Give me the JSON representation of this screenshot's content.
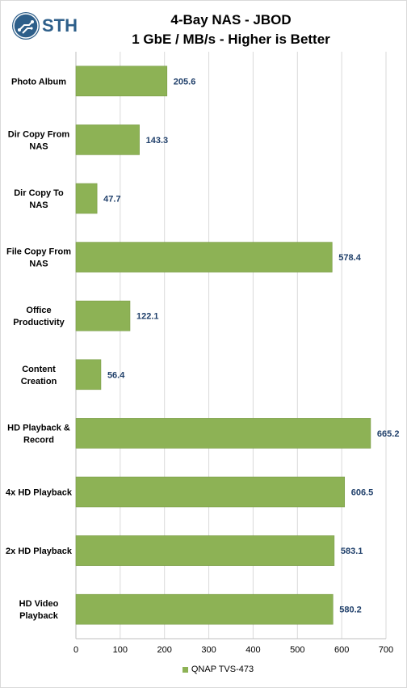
{
  "header": {
    "logo_text": "STH",
    "title_line1": "4-Bay NAS - JBOD",
    "title_line2": "1 GbE / MB/s - Higher is Better"
  },
  "colors": {
    "bar": "#8db255",
    "bar_border": "#7a9c47",
    "value_label": "#1f3f6a",
    "grid": "#d9d9d9",
    "logo": "#2e5f8a"
  },
  "chart_data": {
    "type": "bar",
    "orientation": "horizontal",
    "title": "4-Bay NAS - JBOD 1 GbE / MB/s - Higher is Better",
    "categories": [
      "Photo Album",
      "Dir Copy From NAS",
      "Dir Copy To NAS",
      "File Copy From NAS",
      "Office Productivity",
      "Content Creation",
      "HD Playback & Record",
      "4x HD Playback",
      "2x HD Playback",
      "HD Video Playback"
    ],
    "category_lines": [
      [
        "Photo Album"
      ],
      [
        "Dir Copy From",
        "NAS"
      ],
      [
        "Dir Copy To",
        "NAS"
      ],
      [
        "File Copy From",
        "NAS"
      ],
      [
        "Office",
        "Productivity"
      ],
      [
        "Content",
        "Creation"
      ],
      [
        "HD Playback &",
        "Record"
      ],
      [
        "4x HD Playback"
      ],
      [
        "2x HD Playback"
      ],
      [
        "HD Video",
        "Playback"
      ]
    ],
    "series": [
      {
        "name": "QNAP TVS-473",
        "values": [
          205.6,
          143.3,
          47.7,
          578.4,
          122.1,
          56.4,
          665.2,
          606.5,
          583.1,
          580.2
        ],
        "value_labels": [
          "205.6",
          "143.3",
          "47.7",
          "578.4",
          "122.1",
          "56.4",
          "665.2",
          "606.5",
          "583.1",
          "580.2"
        ]
      }
    ],
    "xlim": [
      0,
      700
    ],
    "xticks": [
      "0",
      "100",
      "200",
      "300",
      "400",
      "500",
      "600",
      "700"
    ],
    "grid": true,
    "legend_position": "bottom"
  }
}
